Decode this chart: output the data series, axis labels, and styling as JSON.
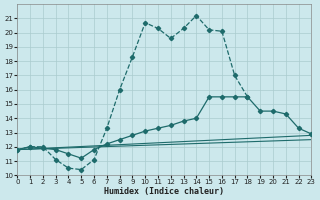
{
  "xlabel": "Humidex (Indice chaleur)",
  "bg_color": "#cce8ec",
  "grid_color": "#aaccce",
  "line_color": "#1e6b6b",
  "xlim": [
    0,
    23
  ],
  "ylim": [
    10,
    22
  ],
  "xticks": [
    0,
    1,
    2,
    3,
    4,
    5,
    6,
    7,
    8,
    9,
    10,
    11,
    12,
    13,
    14,
    15,
    16,
    17,
    18,
    19,
    20,
    21,
    22,
    23
  ],
  "yticks": [
    10,
    11,
    12,
    13,
    14,
    15,
    16,
    17,
    18,
    19,
    20,
    21
  ],
  "curve1_x": [
    0,
    1,
    2,
    3,
    4,
    5,
    6,
    7,
    8,
    9,
    10,
    11,
    12,
    13,
    14,
    15,
    16,
    17,
    18
  ],
  "curve1_y": [
    11.8,
    12.0,
    12.0,
    11.1,
    10.5,
    10.4,
    11.1,
    13.3,
    16.0,
    18.3,
    20.7,
    20.3,
    19.6,
    20.3,
    21.2,
    20.2,
    20.1,
    17.0,
    15.5
  ],
  "curve2_x": [
    0,
    1,
    2,
    3,
    4,
    5,
    6,
    7,
    8,
    9,
    10,
    11,
    12,
    13,
    14,
    15,
    16,
    17,
    18,
    19,
    20,
    21,
    22,
    23
  ],
  "curve2_y": [
    11.8,
    12.0,
    11.9,
    11.8,
    11.5,
    11.2,
    11.8,
    12.2,
    12.5,
    12.8,
    13.1,
    13.3,
    13.5,
    13.8,
    14.0,
    15.5,
    15.5,
    15.5,
    15.5,
    14.5,
    14.5,
    14.3,
    13.3,
    12.9
  ],
  "line3_x": [
    0,
    23
  ],
  "line3_y": [
    11.8,
    12.8
  ],
  "line4_x": [
    0,
    23
  ],
  "line4_y": [
    11.8,
    12.5
  ]
}
